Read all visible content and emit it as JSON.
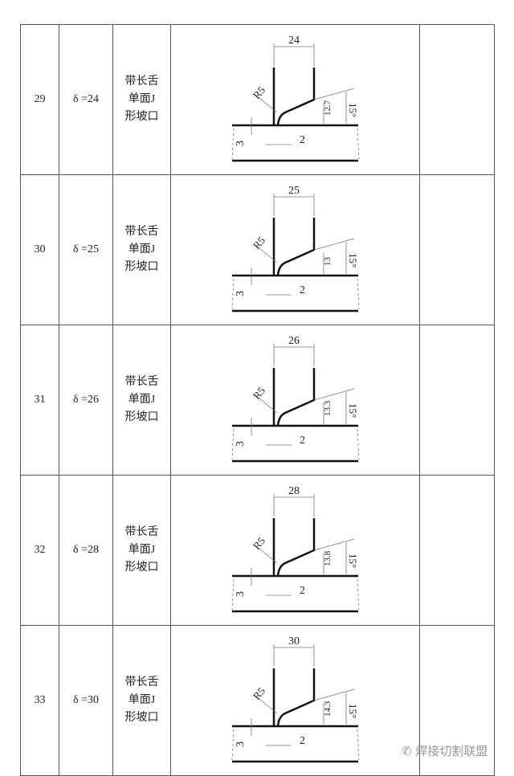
{
  "rows": [
    {
      "no": "29",
      "thickness": "δ =24",
      "type": [
        "带长舌",
        "单面J",
        "形坡口"
      ],
      "width": "24",
      "depth": "12.7",
      "radius": "R5",
      "angle": "15°",
      "gap": "2",
      "root": "3"
    },
    {
      "no": "30",
      "thickness": "δ =25",
      "type": [
        "带长舌",
        "单面J",
        "形坡口"
      ],
      "width": "25",
      "depth": "13",
      "radius": "R5",
      "angle": "15°",
      "gap": "2",
      "root": "3"
    },
    {
      "no": "31",
      "thickness": "δ =26",
      "type": [
        "带长舌",
        "单面J",
        "形坡口"
      ],
      "width": "26",
      "depth": "13.3",
      "radius": "R5",
      "angle": "15°",
      "gap": "2",
      "root": "3"
    },
    {
      "no": "32",
      "thickness": "δ =28",
      "type": [
        "带长舌",
        "单面J",
        "形坡口"
      ],
      "width": "28",
      "depth": "13.8",
      "radius": "R5",
      "angle": "15°",
      "gap": "2",
      "root": "3"
    },
    {
      "no": "33",
      "thickness": "δ =30",
      "type": [
        "带长舌",
        "单面J",
        "形坡口"
      ],
      "width": "30",
      "depth": "14.3",
      "radius": "R5",
      "angle": "15°",
      "gap": "2",
      "root": "3"
    }
  ],
  "watermark": "焊接切割联盟"
}
